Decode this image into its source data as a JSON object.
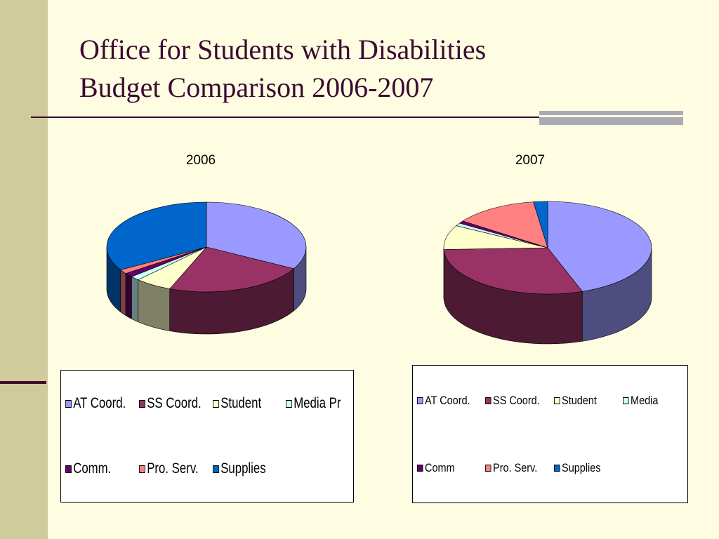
{
  "slide": {
    "title_line1": "Office for Students with Disabilities",
    "title_line2": "Budget Comparison 2006-2007"
  },
  "chart_data": [
    {
      "type": "pie",
      "title": "2006",
      "categories": [
        "AT Coord.",
        "SS Coord.",
        "Student",
        "Media Pr",
        "Comm.",
        "Pro. Serv.",
        "Supplies"
      ],
      "values": [
        33,
        23,
        6,
        1.5,
        1.5,
        1.5,
        33.5
      ],
      "colors": [
        "#9999FF",
        "#993366",
        "#FFFFCC",
        "#CCFFFF",
        "#660066",
        "#FF8080",
        "#0066CC"
      ],
      "legend": "bottom"
    },
    {
      "type": "pie",
      "title": "2007",
      "categories": [
        "AT Coord.",
        "SS Coord.",
        "Student",
        "Media",
        "Comm",
        "Pro. Serv.",
        "Supplies"
      ],
      "values": [
        44.6,
        29.8,
        8.5,
        1,
        0.9,
        13,
        2.2
      ],
      "colors": [
        "#9999FF",
        "#993366",
        "#FFFFCC",
        "#CCFFFF",
        "#660066",
        "#FF8080",
        "#0066CC"
      ],
      "legend": "bottom"
    }
  ]
}
